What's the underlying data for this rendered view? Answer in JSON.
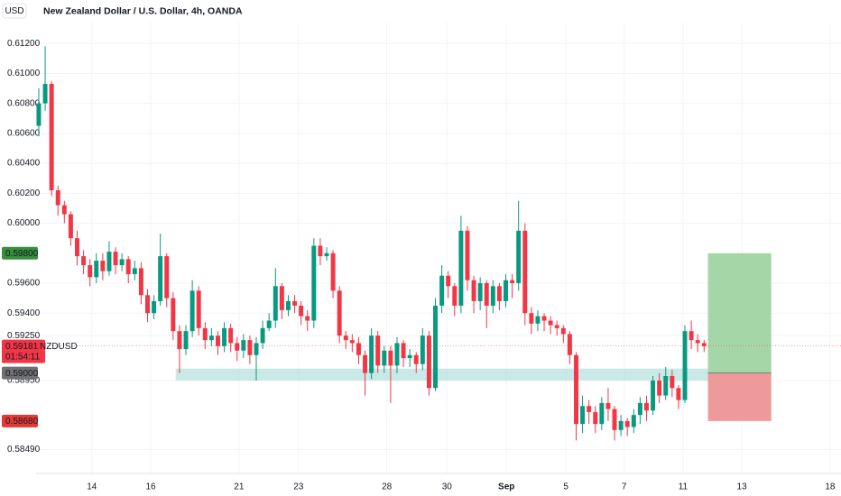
{
  "chart_data": {
    "type": "candlestick",
    "currency": "USD",
    "title": "New Zealand Dollar / U.S. Dollar, 4h, OANDA",
    "up_color": "#089981",
    "down_color": "#f23645",
    "grid": true,
    "open": [
      0.6065,
      0.608,
      0.6093,
      0.6022,
      0.6012,
      0.6006,
      0.599,
      0.5978,
      0.5972,
      0.5964,
      0.5975,
      0.5968,
      0.5981,
      0.5972,
      0.5976,
      0.5966,
      0.597,
      0.5952,
      0.594,
      0.5948,
      0.5978,
      0.595,
      0.5928,
      0.5916,
      0.5928,
      0.5955,
      0.593,
      0.5922,
      0.5925,
      0.5918,
      0.593,
      0.592,
      0.5915,
      0.5922,
      0.5912,
      0.592,
      0.593,
      0.5935,
      0.5958,
      0.5942,
      0.5948,
      0.5945,
      0.5938,
      0.5935,
      0.5985,
      0.5978,
      0.598,
      0.5955,
      0.5925,
      0.5922,
      0.592,
      0.5912,
      0.59,
      0.5925,
      0.5905,
      0.5915,
      0.5905,
      0.592,
      0.591,
      0.5912,
      0.5906,
      0.5925,
      0.589,
      0.5945,
      0.5965,
      0.5958,
      0.5945,
      0.5995,
      0.5962,
      0.5948,
      0.596,
      0.5945,
      0.5958,
      0.5948,
      0.5962,
      0.596,
      0.5995,
      0.594,
      0.5933,
      0.5938,
      0.5935,
      0.5932,
      0.593,
      0.5926,
      0.5912,
      0.5866,
      0.5878,
      0.5874,
      0.5866,
      0.588,
      0.5876,
      0.5862,
      0.5868,
      0.5864,
      0.5872,
      0.588,
      0.5875,
      0.5895,
      0.5885,
      0.5898,
      0.589,
      0.5882,
      0.5928,
      0.5922,
      0.592
    ],
    "high": [
      0.609,
      0.6118,
      0.6095,
      0.6025,
      0.6015,
      0.6008,
      0.5995,
      0.5982,
      0.5976,
      0.598,
      0.598,
      0.5988,
      0.5984,
      0.598,
      0.5978,
      0.5975,
      0.5974,
      0.5956,
      0.5952,
      0.5993,
      0.598,
      0.5954,
      0.5932,
      0.5932,
      0.5962,
      0.5958,
      0.5934,
      0.593,
      0.5928,
      0.5934,
      0.5933,
      0.5924,
      0.5926,
      0.5925,
      0.5924,
      0.5935,
      0.594,
      0.597,
      0.596,
      0.5952,
      0.5952,
      0.5948,
      0.5942,
      0.599,
      0.599,
      0.5984,
      0.5982,
      0.5958,
      0.5928,
      0.5926,
      0.5924,
      0.5915,
      0.593,
      0.5928,
      0.5918,
      0.5918,
      0.5924,
      0.5922,
      0.5916,
      0.5914,
      0.593,
      0.5928,
      0.595,
      0.5972,
      0.5968,
      0.596,
      0.6005,
      0.5998,
      0.5965,
      0.5964,
      0.5962,
      0.5962,
      0.596,
      0.5966,
      0.5966,
      0.6015,
      0.6,
      0.5944,
      0.5942,
      0.594,
      0.5938,
      0.5935,
      0.5932,
      0.5928,
      0.5914,
      0.5885,
      0.5882,
      0.5878,
      0.5884,
      0.589,
      0.5878,
      0.5872,
      0.587,
      0.5876,
      0.5884,
      0.5885,
      0.5898,
      0.59,
      0.5904,
      0.5902,
      0.5892,
      0.5932,
      0.5935,
      0.5926,
      0.5922
    ],
    "low": [
      0.6058,
      0.6075,
      0.6018,
      0.6005,
      0.6,
      0.5985,
      0.5972,
      0.5966,
      0.5958,
      0.596,
      0.5962,
      0.5965,
      0.5966,
      0.5968,
      0.596,
      0.5962,
      0.5946,
      0.5934,
      0.5936,
      0.5945,
      0.5944,
      0.5922,
      0.59,
      0.5912,
      0.5924,
      0.5925,
      0.5916,
      0.5918,
      0.5912,
      0.5914,
      0.5914,
      0.5908,
      0.591,
      0.5906,
      0.5895,
      0.5916,
      0.5928,
      0.593,
      0.5936,
      0.5938,
      0.594,
      0.5932,
      0.5928,
      0.593,
      0.5972,
      0.5975,
      0.595,
      0.592,
      0.5916,
      0.5914,
      0.5906,
      0.5885,
      0.5896,
      0.59,
      0.59,
      0.588,
      0.59,
      0.5904,
      0.5904,
      0.59,
      0.5902,
      0.5885,
      0.5888,
      0.594,
      0.595,
      0.5938,
      0.594,
      0.5955,
      0.594,
      0.5942,
      0.593,
      0.594,
      0.5942,
      0.5944,
      0.595,
      0.5955,
      0.5932,
      0.5926,
      0.5928,
      0.5928,
      0.5926,
      0.5925,
      0.592,
      0.5906,
      0.5855,
      0.586,
      0.5866,
      0.586,
      0.5862,
      0.5868,
      0.5855,
      0.5858,
      0.5858,
      0.586,
      0.5866,
      0.5868,
      0.5872,
      0.588,
      0.5882,
      0.5884,
      0.5876,
      0.588,
      0.5916,
      0.5914,
      0.5914
    ],
    "close": [
      0.608,
      0.6093,
      0.6022,
      0.6012,
      0.6006,
      0.599,
      0.5978,
      0.5972,
      0.5964,
      0.5975,
      0.5968,
      0.5981,
      0.5972,
      0.5976,
      0.5966,
      0.597,
      0.5952,
      0.594,
      0.5948,
      0.5978,
      0.595,
      0.5928,
      0.5916,
      0.5928,
      0.5955,
      0.593,
      0.5922,
      0.5925,
      0.5918,
      0.593,
      0.592,
      0.5915,
      0.5922,
      0.5912,
      0.592,
      0.593,
      0.5935,
      0.5958,
      0.5942,
      0.5948,
      0.5945,
      0.5938,
      0.5935,
      0.5985,
      0.5978,
      0.598,
      0.5955,
      0.5925,
      0.5922,
      0.592,
      0.5912,
      0.59,
      0.5925,
      0.5905,
      0.5915,
      0.5905,
      0.592,
      0.591,
      0.5912,
      0.5906,
      0.5925,
      0.589,
      0.5945,
      0.5965,
      0.5958,
      0.5945,
      0.5995,
      0.5962,
      0.5948,
      0.596,
      0.5945,
      0.5958,
      0.5948,
      0.5962,
      0.596,
      0.5995,
      0.594,
      0.5933,
      0.5938,
      0.5935,
      0.5932,
      0.593,
      0.5926,
      0.5912,
      0.5866,
      0.5878,
      0.5874,
      0.5866,
      0.588,
      0.5876,
      0.5862,
      0.5868,
      0.5864,
      0.5872,
      0.588,
      0.5875,
      0.5895,
      0.5885,
      0.5898,
      0.589,
      0.5882,
      0.5928,
      0.5922,
      0.592,
      0.5918
    ],
    "ylim": [
      0.5833,
      0.6149
    ],
    "yticks": [
      {
        "value": 0.612,
        "label": "0.61200"
      },
      {
        "value": 0.61,
        "label": "0.61000"
      },
      {
        "value": 0.608,
        "label": "0.60800"
      },
      {
        "value": 0.606,
        "label": "0.60600"
      },
      {
        "value": 0.604,
        "label": "0.60400"
      },
      {
        "value": 0.602,
        "label": "0.60200"
      },
      {
        "value": 0.6,
        "label": "0.60000"
      },
      {
        "value": 0.596,
        "label": "0.59600"
      },
      {
        "value": 0.594,
        "label": "0.59400"
      },
      {
        "value": 0.5925,
        "label": "0.59250"
      },
      {
        "value": 0.5895,
        "label": "0.58950"
      },
      {
        "value": 0.5849,
        "label": "0.58490"
      }
    ],
    "xlim": [
      -6.06,
      125.4
    ],
    "xticks": [
      {
        "value": 8.3,
        "label": "14"
      },
      {
        "value": 17.5,
        "label": "16"
      },
      {
        "value": 31.3,
        "label": "21"
      },
      {
        "value": 40.6,
        "label": "23"
      },
      {
        "value": 54.4,
        "label": "28"
      },
      {
        "value": 63.8,
        "label": "30"
      },
      {
        "value": 73.1,
        "label": "Sep"
      },
      {
        "value": 82.4,
        "label": "5"
      },
      {
        "value": 91.5,
        "label": "7"
      },
      {
        "value": 100.7,
        "label": "11"
      },
      {
        "value": 109.9,
        "label": "13"
      },
      {
        "value": 123.7,
        "label": "18"
      }
    ],
    "zone": {
      "start": 21.4,
      "end": 104.6,
      "low": 0.5895,
      "high": 0.5903,
      "color": "#b2dfdb"
    },
    "position": {
      "start": 104.6,
      "end": 114.5,
      "target": 0.598,
      "entry": 0.59,
      "stop": 0.5868,
      "profit_color": "#a5d6a7",
      "loss_color": "#ef9a9a"
    },
    "last_price": {
      "value": 0.59181,
      "label": "0.59181",
      "symbol": "NZDUSD",
      "countdown": "01:54:11",
      "color": "#f23645"
    },
    "price_badges": [
      {
        "value": 0.598,
        "label": "0.59800",
        "color": "#388e3c"
      },
      {
        "value": 0.59,
        "label": "0.59000",
        "color": "#707070"
      },
      {
        "value": 0.5868,
        "label": "0.58680",
        "color": "#e53935"
      }
    ]
  }
}
